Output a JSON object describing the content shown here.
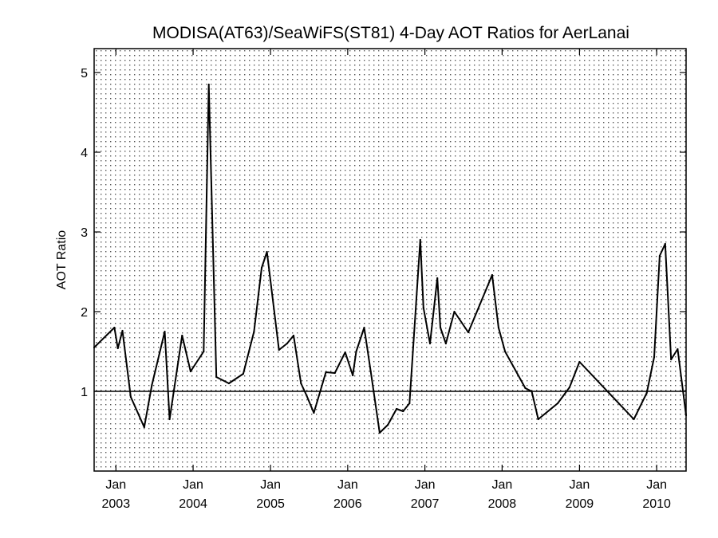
{
  "chart_data": {
    "type": "line",
    "title": "MODISA(AT63)/SeaWiFS(ST81) 4-Day AOT Ratios for AerLanai",
    "xlabel": "",
    "ylabel": "AOT Ratio",
    "xlim": [
      "2002-09-20",
      "2010-05-20"
    ],
    "ylim": [
      0.0,
      5.3
    ],
    "grid": "dotted",
    "reference_line_y": 1,
    "x_ticks": [
      {
        "date": "2003-01-01",
        "month": "Jan",
        "year": "2003"
      },
      {
        "date": "2004-01-01",
        "month": "Jan",
        "year": "2004"
      },
      {
        "date": "2005-01-01",
        "month": "Jan",
        "year": "2005"
      },
      {
        "date": "2006-01-01",
        "month": "Jan",
        "year": "2006"
      },
      {
        "date": "2007-01-01",
        "month": "Jan",
        "year": "2007"
      },
      {
        "date": "2008-01-01",
        "month": "Jan",
        "year": "2008"
      },
      {
        "date": "2009-01-01",
        "month": "Jan",
        "year": "2009"
      },
      {
        "date": "2010-01-01",
        "month": "Jan",
        "year": "2010"
      }
    ],
    "y_ticks": [
      1,
      2,
      3,
      4,
      5
    ],
    "x": [
      "2002-09-20",
      "2002-12-25",
      "2003-01-10",
      "2003-02-01",
      "2003-03-12",
      "2003-05-15",
      "2003-06-20",
      "2003-08-20",
      "2003-09-12",
      "2003-11-10",
      "2003-12-20",
      "2004-02-20",
      "2004-03-15",
      "2004-04-20",
      "2004-06-18",
      "2004-08-25",
      "2004-10-15",
      "2004-11-20",
      "2004-12-15",
      "2005-02-10",
      "2005-03-20",
      "2005-04-20",
      "2005-05-25",
      "2005-06-20",
      "2005-07-25",
      "2005-09-20",
      "2005-11-01",
      "2005-12-20",
      "2006-01-25",
      "2006-02-10",
      "2006-03-20",
      "2006-04-20",
      "2006-06-01",
      "2006-07-10",
      "2006-08-20",
      "2006-09-20",
      "2006-10-20",
      "2006-12-10",
      "2006-12-25",
      "2007-01-25",
      "2007-03-01",
      "2007-03-15",
      "2007-04-10",
      "2007-05-20",
      "2007-07-25",
      "2007-11-15",
      "2007-12-15",
      "2008-01-15",
      "2008-04-20",
      "2008-05-20",
      "2008-06-20",
      "2008-09-20",
      "2008-11-15",
      "2009-01-01",
      "2009-09-15",
      "2009-11-15",
      "2009-12-20",
      "2010-01-15",
      "2010-02-10",
      "2010-03-10",
      "2010-04-10",
      "2010-05-20"
    ],
    "series": [
      {
        "name": "",
        "values": [
          1.55,
          1.8,
          1.54,
          1.76,
          0.93,
          0.55,
          1.08,
          1.75,
          0.65,
          1.7,
          1.25,
          1.5,
          4.85,
          1.18,
          1.1,
          1.22,
          1.75,
          2.55,
          2.75,
          1.52,
          1.6,
          1.7,
          1.1,
          0.95,
          0.73,
          1.24,
          1.23,
          1.49,
          1.2,
          1.5,
          1.8,
          1.25,
          0.48,
          0.58,
          0.78,
          0.75,
          0.85,
          2.9,
          2.05,
          1.6,
          2.42,
          1.8,
          1.6,
          2.0,
          1.74,
          2.46,
          1.8,
          1.5,
          1.04,
          1.0,
          0.65,
          0.85,
          1.05,
          1.37,
          0.65,
          0.98,
          1.43,
          2.7,
          2.85,
          1.4,
          1.53,
          0.7
        ]
      }
    ]
  }
}
